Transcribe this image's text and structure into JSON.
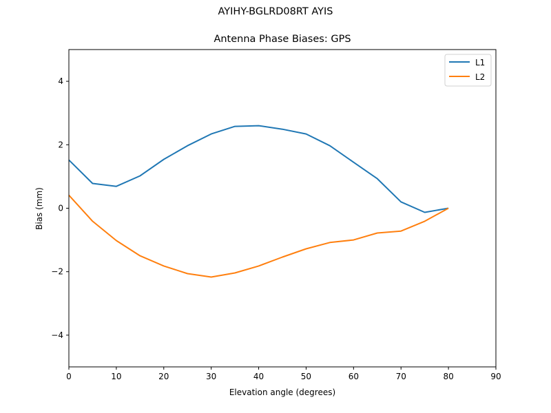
{
  "figure": {
    "suptitle": "AYIHY-BGLRD08RT AYIS",
    "title": "Antenna Phase Biases: GPS"
  },
  "chart_data": {
    "type": "line",
    "title": "Antenna Phase Biases: GPS",
    "suptitle": "AYIHY-BGLRD08RT AYIS",
    "xlabel": "Elevation angle (degrees)",
    "ylabel": "Bias (mm)",
    "xlim": [
      0,
      90
    ],
    "ylim": [
      -5,
      5
    ],
    "xticks": [
      0,
      10,
      20,
      30,
      40,
      50,
      60,
      70,
      80,
      90
    ],
    "yticks": [
      -4,
      -2,
      0,
      2,
      4
    ],
    "ytick_labels": [
      "−4",
      "−2",
      "0",
      "2",
      "4"
    ],
    "grid": false,
    "legend_position": "upper right",
    "x": [
      0,
      5,
      10,
      15,
      20,
      25,
      30,
      35,
      40,
      45,
      50,
      55,
      60,
      65,
      70,
      75,
      80
    ],
    "series": [
      {
        "name": "L1",
        "color": "#1f77b4",
        "values": [
          1.52,
          0.78,
          0.69,
          1.02,
          1.54,
          1.97,
          2.34,
          2.58,
          2.6,
          2.49,
          2.34,
          1.97,
          1.45,
          0.93,
          0.2,
          -0.13,
          0.0
        ]
      },
      {
        "name": "L2",
        "color": "#ff7f0e",
        "values": [
          0.41,
          -0.41,
          -1.02,
          -1.5,
          -1.82,
          -2.06,
          -2.17,
          -2.04,
          -1.82,
          -1.54,
          -1.28,
          -1.08,
          -1.0,
          -0.78,
          -0.72,
          -0.41,
          0.0
        ]
      }
    ]
  }
}
